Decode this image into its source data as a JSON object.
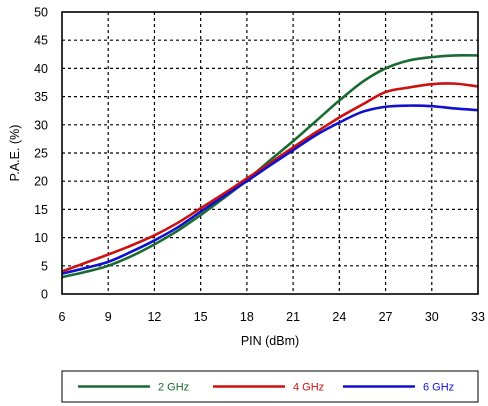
{
  "chart_data": {
    "type": "line",
    "xlabel": "PIN (dBm)",
    "ylabel": "P.A.E. (%)",
    "xlim": [
      6,
      33
    ],
    "ylim": [
      0,
      50
    ],
    "xticks": [
      "6",
      "9",
      "12",
      "15",
      "18",
      "21",
      "24",
      "27",
      "30",
      "33"
    ],
    "yticks": [
      "0",
      "5",
      "10",
      "15",
      "20",
      "25",
      "30",
      "35",
      "40",
      "45",
      "50"
    ],
    "grid": true,
    "legend_position": "bottom",
    "series": [
      {
        "name": "2 GHz",
        "color": "#1a6b32",
        "x": [
          6,
          7.5,
          9,
          10.5,
          12,
          13.5,
          15,
          16.5,
          18,
          19.5,
          21,
          22.5,
          24,
          25.5,
          27,
          28.5,
          30,
          31.5,
          33
        ],
        "y": [
          3.0,
          3.9,
          5.0,
          6.7,
          8.8,
          11.2,
          14.0,
          17.0,
          20.2,
          23.7,
          27.1,
          30.7,
          34.3,
          37.6,
          40.0,
          41.4,
          42.0,
          42.3,
          42.3
        ]
      },
      {
        "name": "4 GHz",
        "color": "#cc1111",
        "x": [
          6,
          7.5,
          9,
          10.5,
          12,
          13.5,
          15,
          16.5,
          18,
          19.5,
          21,
          22.5,
          24,
          25.5,
          27,
          28.5,
          30,
          31.5,
          33
        ],
        "y": [
          4.0,
          5.5,
          7.0,
          8.6,
          10.4,
          12.6,
          15.2,
          17.8,
          20.5,
          23.2,
          26.0,
          28.7,
          31.3,
          33.6,
          35.8,
          36.6,
          37.2,
          37.3,
          36.8
        ]
      },
      {
        "name": "6 GHz",
        "color": "#1111cc",
        "x": [
          6,
          7.5,
          9,
          10.5,
          12,
          13.5,
          15,
          16.5,
          18,
          19.5,
          21,
          22.5,
          24,
          25.5,
          27,
          28.5,
          30,
          31.5,
          33
        ],
        "y": [
          3.6,
          4.6,
          5.7,
          7.5,
          9.5,
          11.8,
          14.6,
          17.3,
          20.0,
          22.8,
          25.5,
          28.2,
          30.4,
          32.3,
          33.2,
          33.4,
          33.3,
          32.9,
          32.6
        ]
      }
    ]
  }
}
